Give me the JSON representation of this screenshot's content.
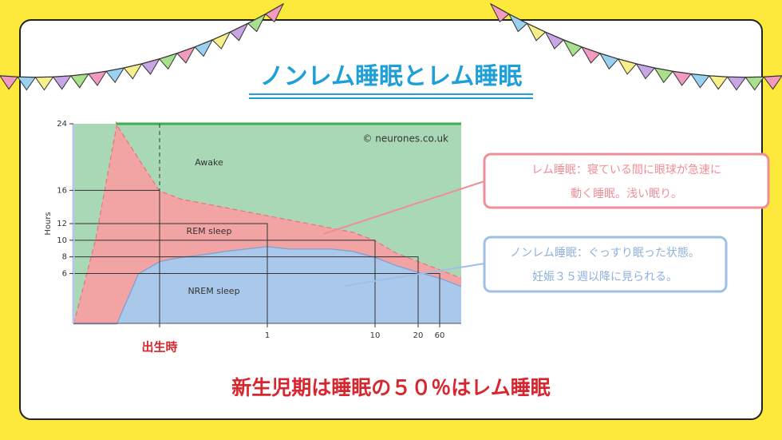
{
  "title": "ノンレム睡眠とレム睡眠",
  "callouts": [
    {
      "lines": [
        "レム睡眠：寝ている間に眼球が急速に",
        "動く睡眠。浅い眠り。"
      ]
    },
    {
      "lines": [
        "ノンレム睡眠：ぐっすり眠った状態。",
        "妊娠３５週以降に見られる。"
      ]
    }
  ],
  "caption": "新生児期は睡眠の５０％はレム睡眠",
  "chart_data": {
    "type": "area",
    "ylabel": "Hours",
    "credit": "© neurones.co.uk",
    "categories": [
      null,
      null,
      null,
      null,
      "出生時",
      null,
      null,
      null,
      null,
      "1",
      null,
      null,
      null,
      null,
      "10",
      null,
      "20",
      "60",
      null
    ],
    "series": [
      {
        "name": "NREM sleep",
        "color": "#a9c8ea",
        "values": [
          0,
          0,
          0,
          6,
          7.5,
          8,
          8.3,
          8.7,
          9,
          9.3,
          9,
          9,
          9,
          8.7,
          8,
          7,
          6.2,
          5.5,
          4.5
        ]
      },
      {
        "name": "REM sleep",
        "color": "#f2a3a3",
        "values": [
          0,
          10,
          24,
          14,
          8.5,
          7,
          6.2,
          5.3,
          4.5,
          3.7,
          3.5,
          3,
          2.5,
          2.3,
          2,
          1.5,
          1.3,
          1,
          1
        ]
      },
      {
        "name": "Awake",
        "color": "#a9d8b6",
        "values": [
          24,
          14,
          0,
          4,
          8,
          9,
          9.5,
          10,
          10.5,
          11,
          11.5,
          12,
          12.5,
          13,
          14,
          15.5,
          16.5,
          17.5,
          18.5
        ]
      }
    ],
    "ylim": [
      0,
      24
    ],
    "yticks": [
      6,
      8,
      10,
      12,
      16,
      24
    ],
    "guides": [
      [
        16,
        4
      ],
      [
        12,
        9
      ],
      [
        10,
        14
      ],
      [
        8,
        16
      ],
      [
        6,
        17
      ]
    ]
  }
}
